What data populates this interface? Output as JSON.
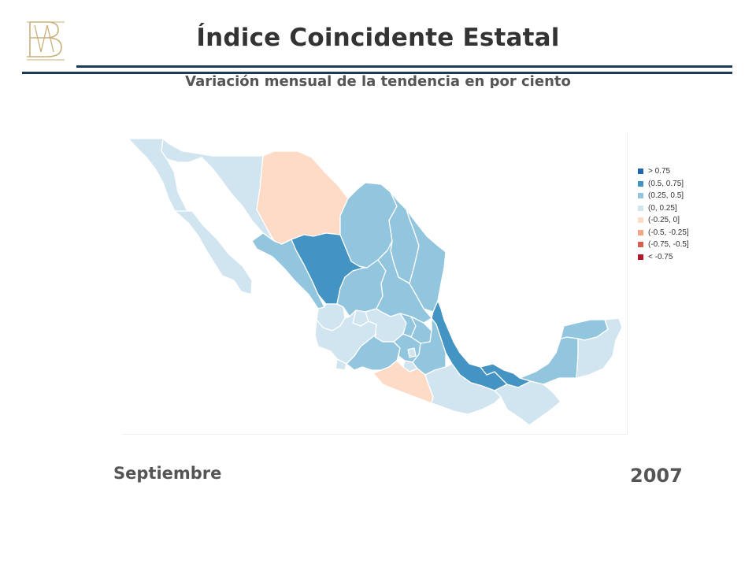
{
  "header": {
    "title": "Índice Coincidente Estatal",
    "subtitle": "Variación mensual de la tendencia en por ciento"
  },
  "logo": {
    "icon": "bm-monogram-logo",
    "text": "BM",
    "color": "#c9b07a"
  },
  "period": {
    "month": "Septiembre",
    "year": "2007"
  },
  "map": {
    "legend": [
      {
        "label": "> 0.75",
        "color": "#2166ac"
      },
      {
        "label": "(0.5, 0.75]",
        "color": "#4393c3"
      },
      {
        "label": "(0.25, 0.5]",
        "color": "#92c5de"
      },
      {
        "label": "(0, 0.25]",
        "color": "#d1e5f0"
      },
      {
        "label": "(-0.25, 0]",
        "color": "#fddbc7"
      },
      {
        "label": "(-0.5, -0.25]",
        "color": "#f4a582"
      },
      {
        "label": "(-0.75, -0.5]",
        "color": "#d6604d"
      },
      {
        "label": "< -0.75",
        "color": "#b2182b"
      }
    ],
    "states": [
      {
        "name": "Baja California",
        "class": "(0, 0.25]"
      },
      {
        "name": "Baja California Sur",
        "class": "(0, 0.25]"
      },
      {
        "name": "Sonora",
        "class": "(0, 0.25]"
      },
      {
        "name": "Chihuahua",
        "class": "(-0.25, 0]"
      },
      {
        "name": "Coahuila",
        "class": "(0.25, 0.5]"
      },
      {
        "name": "Nuevo León",
        "class": "(0.25, 0.5]"
      },
      {
        "name": "Tamaulipas",
        "class": "(0.25, 0.5]"
      },
      {
        "name": "Sinaloa",
        "class": "(0.25, 0.5]"
      },
      {
        "name": "Durango",
        "class": "(0.5, 0.75]"
      },
      {
        "name": "Zacatecas",
        "class": "(0.25, 0.5]"
      },
      {
        "name": "San Luis Potosí",
        "class": "(0.25, 0.5]"
      },
      {
        "name": "Nayarit",
        "class": "(0, 0.25]"
      },
      {
        "name": "Aguascalientes",
        "class": "(0, 0.25]"
      },
      {
        "name": "Jalisco",
        "class": "(0, 0.25]"
      },
      {
        "name": "Guanajuato",
        "class": "(0, 0.25]"
      },
      {
        "name": "Querétaro",
        "class": "(0.25, 0.5]"
      },
      {
        "name": "Hidalgo",
        "class": "(0.25, 0.5]"
      },
      {
        "name": "Colima",
        "class": "(0, 0.25]"
      },
      {
        "name": "Michoacán",
        "class": "(0.25, 0.5]"
      },
      {
        "name": "Estado de México",
        "class": "(0.25, 0.5]"
      },
      {
        "name": "Ciudad de México",
        "class": "(0, 0.25]"
      },
      {
        "name": "Morelos",
        "class": "(0, 0.25]"
      },
      {
        "name": "Tlaxcala",
        "class": "(0.25, 0.5]"
      },
      {
        "name": "Puebla",
        "class": "(0.25, 0.5]"
      },
      {
        "name": "Veracruz",
        "class": "(0.5, 0.75]"
      },
      {
        "name": "Guerrero",
        "class": "(-0.25, 0]"
      },
      {
        "name": "Oaxaca",
        "class": "(0, 0.25]"
      },
      {
        "name": "Chiapas",
        "class": "(0, 0.25]"
      },
      {
        "name": "Tabasco",
        "class": "(0.5, 0.75]"
      },
      {
        "name": "Campeche",
        "class": "(0.25, 0.5]"
      },
      {
        "name": "Yucatán",
        "class": "(0.25, 0.5]"
      },
      {
        "name": "Quintana Roo",
        "class": "(0, 0.25]"
      }
    ]
  }
}
